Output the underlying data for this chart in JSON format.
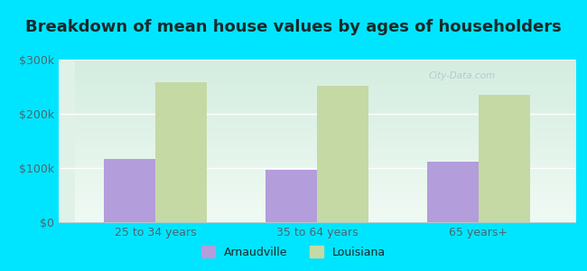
{
  "title": "Breakdown of mean house values by ages of householders",
  "categories": [
    "25 to 34 years",
    "35 to 64 years",
    "65 years+"
  ],
  "arnaudville_values": [
    117000,
    97000,
    112000
  ],
  "louisiana_values": [
    258000,
    252000,
    235000
  ],
  "arnaudville_color": "#b39ddb",
  "louisiana_color": "#c5d9a4",
  "background_outer": "#00e5ff",
  "background_inner_top": "#e8f5e0",
  "background_inner_bottom": "#d0f0e8",
  "ylim": [
    0,
    300000
  ],
  "yticks": [
    0,
    100000,
    200000,
    300000
  ],
  "ytick_labels": [
    "$0",
    "$100k",
    "$200k",
    "$300k"
  ],
  "legend_labels": [
    "Arnaudville",
    "Louisiana"
  ],
  "bar_width": 0.32,
  "title_fontsize": 13,
  "tick_fontsize": 9,
  "legend_fontsize": 9
}
